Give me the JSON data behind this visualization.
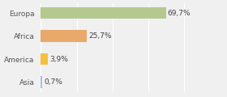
{
  "categories": [
    "Asia",
    "America",
    "Africa",
    "Europa"
  ],
  "values": [
    0.7,
    3.9,
    25.7,
    69.7
  ],
  "labels": [
    "0,7%",
    "3,9%",
    "25,7%",
    "69,7%"
  ],
  "bar_colors": [
    "#aabfde",
    "#f5c040",
    "#e8a96a",
    "#b5c98e"
  ],
  "background_color": "#f0f0f0",
  "xlim": [
    0,
    100
  ],
  "label_fontsize": 6.5,
  "category_fontsize": 6.5
}
